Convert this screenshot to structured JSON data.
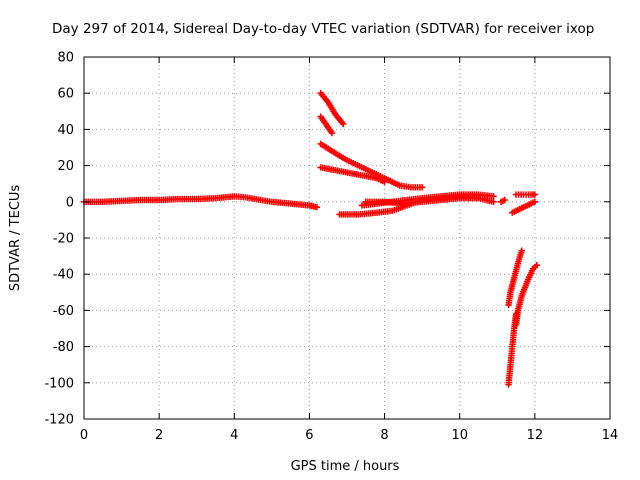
{
  "chart_data": {
    "type": "scatter",
    "title": "Day 297 of 2014, Sidereal Day-to-day VTEC variation (SDTVAR) for receiver ixop",
    "xlabel": "GPS time / hours",
    "ylabel": "SDTVAR / TECUs",
    "xlim": [
      0,
      14
    ],
    "ylim": [
      -120,
      80
    ],
    "xticks": [
      0,
      2,
      4,
      6,
      8,
      10,
      12,
      14
    ],
    "yticks": [
      -120,
      -100,
      -80,
      -60,
      -40,
      -20,
      0,
      20,
      40,
      60,
      80
    ],
    "grid": true,
    "marker": "plus",
    "color": "#ff0000",
    "series": [
      {
        "values": [
          [
            0.0,
            0
          ],
          [
            0.5,
            0
          ],
          [
            1.0,
            0.5
          ],
          [
            1.5,
            1
          ],
          [
            2.0,
            1
          ],
          [
            2.5,
            1.5
          ],
          [
            3.0,
            1.5
          ],
          [
            3.5,
            2
          ],
          [
            4.0,
            3
          ],
          [
            4.3,
            2.5
          ],
          [
            4.7,
            1
          ],
          [
            5.0,
            0
          ],
          [
            5.5,
            -1
          ],
          [
            6.0,
            -2
          ],
          [
            6.2,
            -3
          ]
        ]
      },
      {
        "values": [
          [
            6.3,
            60
          ],
          [
            6.5,
            55
          ],
          [
            6.7,
            48
          ],
          [
            6.9,
            43
          ]
        ]
      },
      {
        "values": [
          [
            6.3,
            47
          ],
          [
            6.4,
            44
          ],
          [
            6.5,
            41
          ],
          [
            6.6,
            38
          ]
        ]
      },
      {
        "values": [
          [
            6.3,
            32
          ],
          [
            6.6,
            28
          ],
          [
            7.0,
            23
          ],
          [
            7.5,
            18
          ],
          [
            8.0,
            13
          ],
          [
            8.4,
            9
          ],
          [
            8.7,
            8
          ],
          [
            9.0,
            8
          ]
        ]
      },
      {
        "values": [
          [
            6.3,
            19
          ],
          [
            6.8,
            17
          ],
          [
            7.3,
            15
          ],
          [
            7.8,
            13
          ],
          [
            8.0,
            11
          ]
        ]
      },
      {
        "values": [
          [
            6.8,
            -7
          ],
          [
            7.3,
            -7
          ],
          [
            7.8,
            -6
          ],
          [
            8.2,
            -5
          ],
          [
            8.6,
            -2
          ],
          [
            9.0,
            1
          ],
          [
            9.5,
            2
          ],
          [
            10.0,
            3
          ],
          [
            10.5,
            2
          ],
          [
            10.9,
            0
          ]
        ]
      },
      {
        "values": [
          [
            7.4,
            -2
          ],
          [
            7.8,
            -1
          ],
          [
            8.2,
            0
          ],
          [
            8.6,
            1
          ],
          [
            9.0,
            2
          ],
          [
            9.5,
            3
          ],
          [
            10.0,
            4
          ],
          [
            10.5,
            4
          ],
          [
            10.9,
            3
          ]
        ]
      },
      {
        "values": [
          [
            7.5,
            0
          ],
          [
            8.0,
            0
          ],
          [
            8.5,
            -1
          ],
          [
            9.0,
            0
          ],
          [
            9.5,
            1
          ],
          [
            10.0,
            2
          ],
          [
            10.5,
            2
          ]
        ]
      },
      {
        "values": [
          [
            11.1,
            0
          ],
          [
            11.2,
            1
          ]
        ]
      },
      {
        "values": [
          [
            11.4,
            -6
          ],
          [
            11.6,
            -4
          ],
          [
            11.8,
            -2
          ],
          [
            12.0,
            0
          ]
        ]
      },
      {
        "values": [
          [
            11.5,
            4
          ],
          [
            11.7,
            4
          ],
          [
            11.9,
            4
          ],
          [
            12.0,
            4
          ]
        ]
      },
      {
        "values": [
          [
            11.3,
            -101
          ],
          [
            11.35,
            -90
          ],
          [
            11.4,
            -80
          ],
          [
            11.45,
            -70
          ],
          [
            11.5,
            -62
          ]
        ]
      },
      {
        "values": [
          [
            11.3,
            -57
          ],
          [
            11.35,
            -50
          ],
          [
            11.45,
            -42
          ],
          [
            11.55,
            -34
          ],
          [
            11.65,
            -27
          ]
        ]
      },
      {
        "values": [
          [
            11.5,
            -68
          ],
          [
            11.55,
            -60
          ],
          [
            11.65,
            -52
          ],
          [
            11.8,
            -44
          ],
          [
            11.95,
            -37
          ],
          [
            12.05,
            -35
          ]
        ]
      }
    ]
  }
}
